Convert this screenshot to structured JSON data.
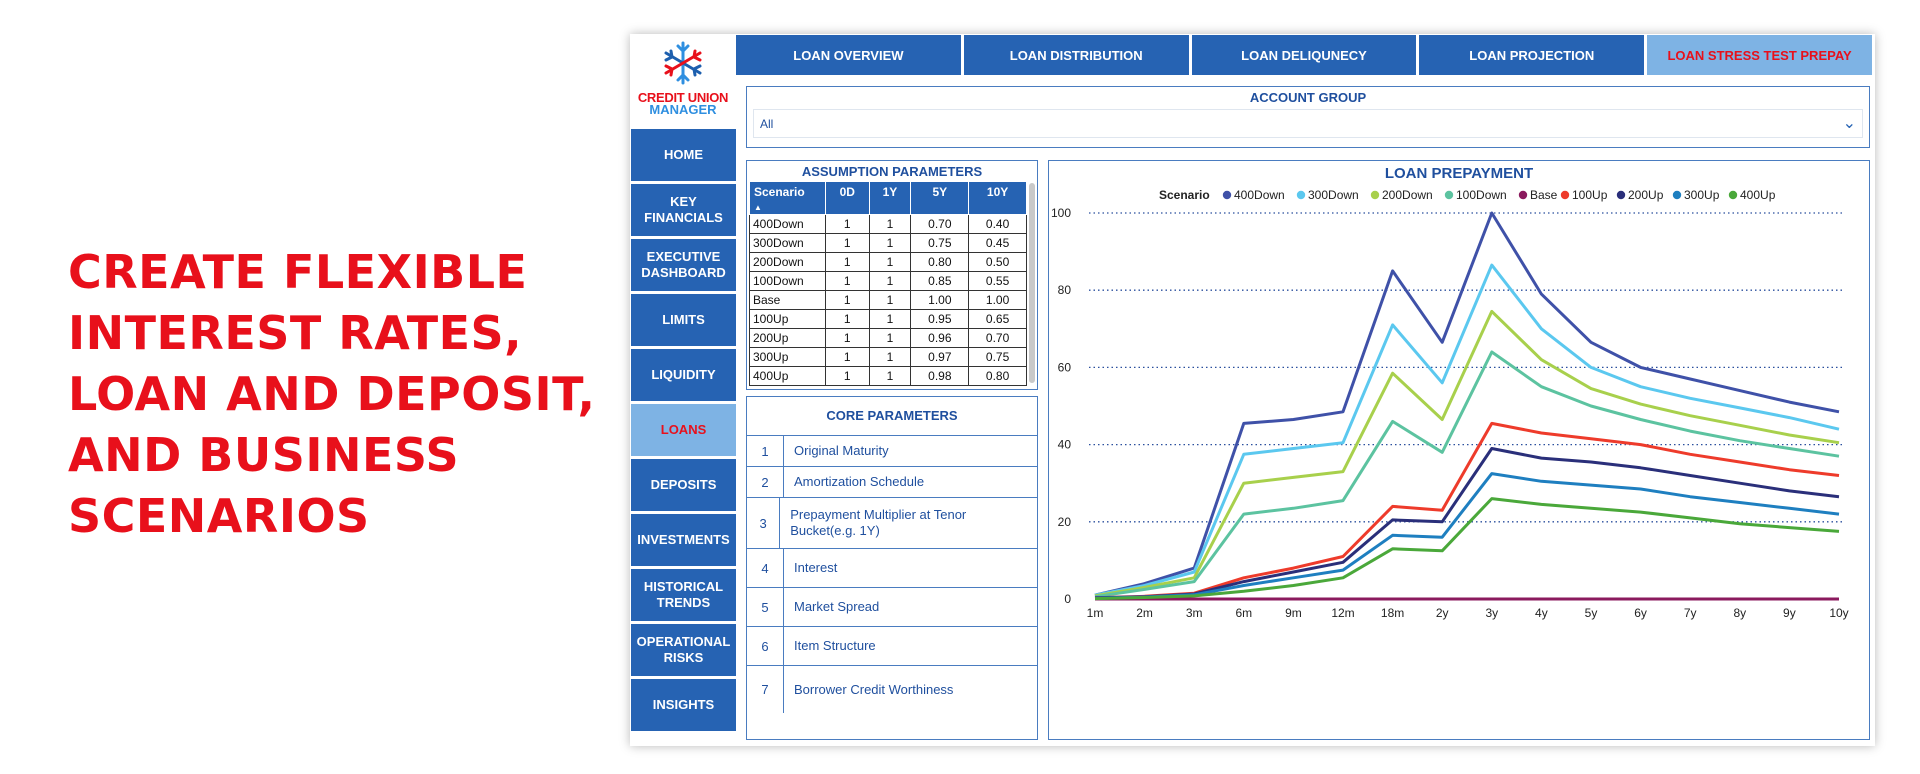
{
  "headline": "CREATE FLEXIBLE INTEREST RATES, LOAN AND DEPOSIT, AND BUSINESS SCENARIOS",
  "logo": {
    "line1": "CREDIT UNION",
    "line2": "MANAGER"
  },
  "topnav": [
    {
      "label": "LOAN OVERVIEW",
      "active": false
    },
    {
      "label": "LOAN DISTRIBUTION",
      "active": false
    },
    {
      "label": "LOAN DELIQUNECY",
      "active": false
    },
    {
      "label": "LOAN PROJECTION",
      "active": false
    },
    {
      "label": "LOAN STRESS TEST PREPAY",
      "active": true
    }
  ],
  "sidenav": [
    {
      "label": "HOME",
      "active": false
    },
    {
      "label": "KEY\nFINANCIALS",
      "active": false
    },
    {
      "label": "EXECUTIVE\nDASHBOARD",
      "active": false
    },
    {
      "label": "LIMITS",
      "active": false
    },
    {
      "label": "LIQUIDITY",
      "active": false
    },
    {
      "label": "LOANS",
      "active": true
    },
    {
      "label": "DEPOSITS",
      "active": false
    },
    {
      "label": "INVESTMENTS",
      "active": false
    },
    {
      "label": "HISTORICAL\nTRENDS",
      "active": false
    },
    {
      "label": "OPERATIONAL\nRISKS",
      "active": false
    },
    {
      "label": "INSIGHTS",
      "active": false
    }
  ],
  "account_group": {
    "title": "ACCOUNT GROUP",
    "value": "All"
  },
  "assumptions": {
    "title": "ASSUMPTION PARAMETERS",
    "columns": [
      "Scenario",
      "0D",
      "1Y",
      "5Y",
      "10Y"
    ],
    "rows": [
      [
        "400Down",
        "1",
        "1",
        "0.70",
        "0.40"
      ],
      [
        "300Down",
        "1",
        "1",
        "0.75",
        "0.45"
      ],
      [
        "200Down",
        "1",
        "1",
        "0.80",
        "0.50"
      ],
      [
        "100Down",
        "1",
        "1",
        "0.85",
        "0.55"
      ],
      [
        "Base",
        "1",
        "1",
        "1.00",
        "1.00"
      ],
      [
        "100Up",
        "1",
        "1",
        "0.95",
        "0.65"
      ],
      [
        "200Up",
        "1",
        "1",
        "0.96",
        "0.70"
      ],
      [
        "300Up",
        "1",
        "1",
        "0.97",
        "0.75"
      ],
      [
        "400Up",
        "1",
        "1",
        "0.98",
        "0.80"
      ]
    ]
  },
  "core": {
    "title": "CORE PARAMETERS",
    "items": [
      {
        "num": "1",
        "label": "Original Maturity"
      },
      {
        "num": "2",
        "label": "Amortization Schedule"
      },
      {
        "num": "3",
        "label": "Prepayment Multiplier at Tenor Bucket(e.g. 1Y)"
      },
      {
        "num": "4",
        "label": "Interest"
      },
      {
        "num": "5",
        "label": "Market Spread"
      },
      {
        "num": "6",
        "label": "Item Structure"
      },
      {
        "num": "7",
        "label": "Borrower Credit Worthiness"
      }
    ]
  },
  "chart_data": {
    "type": "line",
    "title": "LOAN PREPAYMENT",
    "legend_title": "Scenario",
    "legend_position": "top",
    "grid": true,
    "ylim": [
      0,
      100
    ],
    "yticks": [
      0,
      20,
      40,
      60,
      80,
      100
    ],
    "x": [
      "1m",
      "2m",
      "3m",
      "6m",
      "9m",
      "12m",
      "18m",
      "2y",
      "3y",
      "4y",
      "5y",
      "6y",
      "7y",
      "8y",
      "9y",
      "10y"
    ],
    "series": [
      {
        "name": "400Down",
        "color": "#3f51a8",
        "values": [
          1,
          4,
          8,
          45.5,
          46.5,
          48.5,
          85,
          66.5,
          100,
          79,
          66.5,
          60,
          57,
          54,
          51,
          48.5
        ]
      },
      {
        "name": "300Down",
        "color": "#5bc8ef",
        "values": [
          1,
          3.5,
          7,
          37.5,
          39,
          40.5,
          71,
          56,
          86.5,
          70,
          60,
          55,
          52,
          49.5,
          47,
          44
        ]
      },
      {
        "name": "200Down",
        "color": "#a8d04c",
        "values": [
          0.8,
          3,
          5.5,
          30,
          31.5,
          33,
          58.5,
          46.5,
          74.5,
          62,
          54.5,
          50.5,
          47.5,
          45,
          42.5,
          40.5
        ]
      },
      {
        "name": "100Down",
        "color": "#5cc3a0",
        "values": [
          0.6,
          2.5,
          4.5,
          22,
          23.5,
          25.5,
          46,
          38,
          64,
          55,
          50,
          46.5,
          43.5,
          41,
          39,
          37
        ]
      },
      {
        "name": "Base",
        "color": "#8b1a5e",
        "values": [
          0,
          0,
          0,
          0,
          0,
          0,
          0,
          0,
          0,
          0,
          0,
          0,
          0,
          0,
          0,
          0
        ]
      },
      {
        "name": "100Up",
        "color": "#ee3b2b",
        "values": [
          0.3,
          0.7,
          1.5,
          5.5,
          8,
          11,
          24,
          23,
          45.5,
          43,
          41.5,
          40,
          37.5,
          35.5,
          33.5,
          32
        ]
      },
      {
        "name": "200Up",
        "color": "#2a2f7a",
        "values": [
          0.3,
          0.6,
          1.3,
          4.5,
          7,
          9.5,
          20.5,
          20,
          39,
          36.5,
          35.5,
          34,
          32,
          30,
          28,
          26.5
        ]
      },
      {
        "name": "300Up",
        "color": "#1e7fc0",
        "values": [
          0.2,
          0.5,
          1.1,
          3.5,
          5.5,
          7.5,
          16.5,
          16,
          32.5,
          30.5,
          29.5,
          28.5,
          26.5,
          25,
          23.5,
          22
        ]
      },
      {
        "name": "400Up",
        "color": "#4aa83a",
        "values": [
          0.1,
          0.4,
          0.8,
          2,
          3.5,
          5.5,
          13,
          12.5,
          26,
          24.5,
          23.5,
          22.5,
          21,
          19.5,
          18.5,
          17.5
        ]
      }
    ]
  }
}
